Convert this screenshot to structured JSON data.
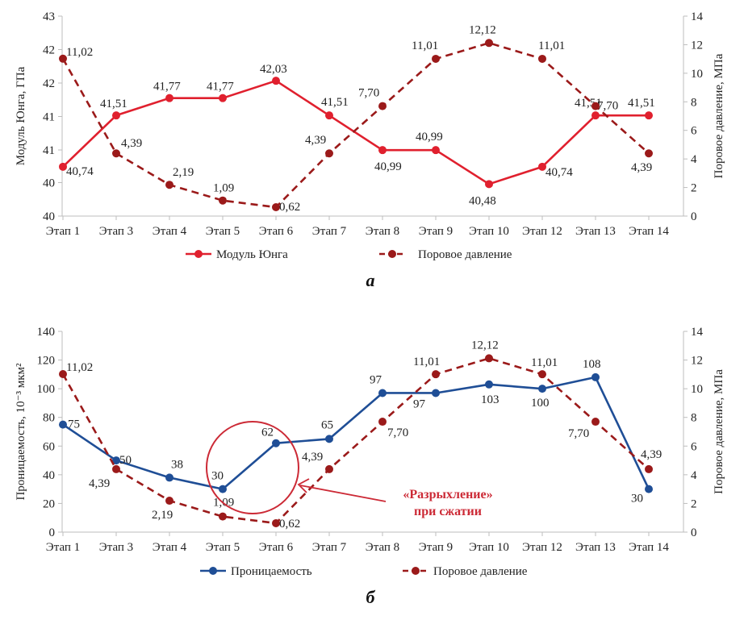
{
  "chart_data": [
    {
      "type": "line",
      "caption": "а",
      "categories": [
        "Этап 1",
        "Этап 3",
        "Этап 4",
        "Этап 5",
        "Этап 6",
        "Этап 7",
        "Этап 8",
        "Этап 9",
        "Этап 10",
        "Этап 12",
        "Этап 13",
        "Этап 14"
      ],
      "y_left": {
        "label": "Модуль Юнга, ГПа",
        "ylim": [
          40,
          43
        ],
        "tick_labels": [
          "40",
          "40",
          "41",
          "41",
          "42",
          "42",
          "43"
        ]
      },
      "y_right": {
        "label": "Поровое давление, МПа",
        "ylim": [
          0,
          14
        ],
        "ticks": [
          0,
          2,
          4,
          6,
          8,
          10,
          12,
          14
        ]
      },
      "series": [
        {
          "name": "Модуль Юнга",
          "axis": "left",
          "color": "#e0202e",
          "style": "solid",
          "values": [
            40.74,
            41.51,
            41.77,
            41.77,
            42.03,
            41.51,
            40.99,
            40.99,
            40.48,
            40.74,
            41.51,
            41.51
          ],
          "labels": [
            "40,74",
            "41,51",
            "41,77",
            "41,77",
            "42,03",
            "41,51",
            "40,99",
            "40,99",
            "40,48",
            "40,74",
            "41,51",
            "41,51"
          ]
        },
        {
          "name": "Поровое давление",
          "axis": "right",
          "color": "#9b1a1a",
          "style": "dashed",
          "values": [
            11.02,
            4.39,
            2.19,
            1.09,
            0.62,
            4.39,
            7.7,
            11.01,
            12.12,
            11.01,
            7.7,
            4.39
          ],
          "labels": [
            "11,02",
            "4,39",
            "2,19",
            "1,09",
            "0,62",
            "4,39",
            "7,70",
            "11,01",
            "12,12",
            "11,01",
            "7,70",
            "4,39"
          ]
        }
      ],
      "legend": "bottom",
      "grid": false
    },
    {
      "type": "line",
      "caption": "б",
      "categories": [
        "Этап 1",
        "Этап 3",
        "Этап 4",
        "Этап 5",
        "Этап 6",
        "Этап 7",
        "Этап 8",
        "Этап 9",
        "Этап 10",
        "Этап 12",
        "Этап 13",
        "Этап 14"
      ],
      "y_left": {
        "label": "Проницаемость, 10⁻³ мкм²",
        "ylim": [
          0,
          140
        ],
        "ticks": [
          0,
          20,
          40,
          60,
          80,
          100,
          120,
          140
        ]
      },
      "y_right": {
        "label": "Поровое давление, МПа",
        "ylim": [
          0,
          14
        ],
        "ticks": [
          0,
          2,
          4,
          6,
          8,
          10,
          12,
          14
        ]
      },
      "series": [
        {
          "name": "Проницаемость",
          "axis": "left",
          "color": "#1f4e96",
          "style": "solid",
          "values": [
            75,
            50,
            38,
            30,
            62,
            65,
            97,
            97,
            103,
            100,
            108,
            30
          ],
          "labels": [
            "75",
            "50",
            "38",
            "30",
            "62",
            "65",
            "97",
            "97",
            "103",
            "100",
            "108",
            "30"
          ]
        },
        {
          "name": "Поровое давление",
          "axis": "right",
          "color": "#9b1a1a",
          "style": "dashed",
          "values": [
            11.02,
            4.39,
            2.19,
            1.09,
            0.62,
            4.39,
            7.7,
            11.01,
            12.12,
            11.01,
            7.7,
            4.39
          ],
          "labels": [
            "11,02",
            "4,39",
            "2,19",
            "1,09",
            "0,62",
            "4,39",
            "7,70",
            "11,01",
            "12,12",
            "11,01",
            "7,70",
            "4,39"
          ]
        }
      ],
      "annotation": {
        "line1": "«Разрыхление»",
        "line2": "при сжатии",
        "color": "#cc2a36"
      },
      "legend": "bottom",
      "grid": false
    }
  ]
}
